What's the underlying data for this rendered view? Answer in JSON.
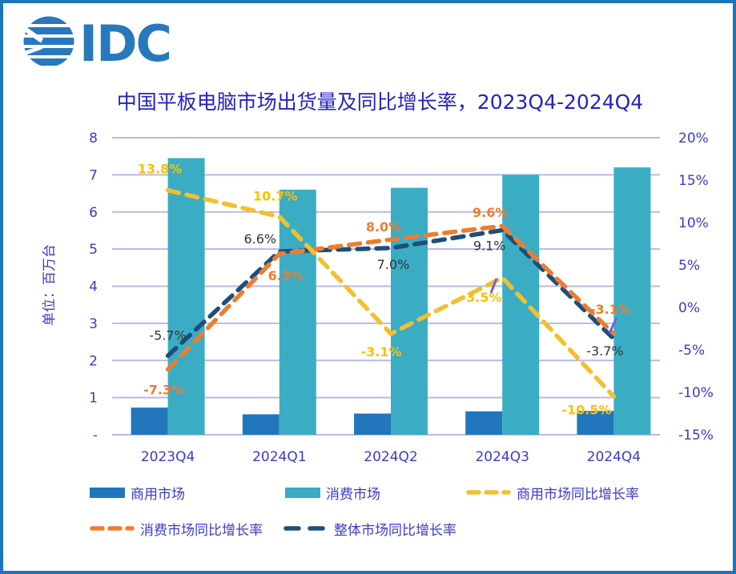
{
  "logo": {
    "text": "IDC"
  },
  "title": "中国平板电脑市场出货量及同比增长率，2023Q4-2024Q4",
  "colors": {
    "frame": "#1B75BB",
    "logo_blue": "#2878BE",
    "title_text": "#2424BE",
    "axis_text": "#3B3BC8",
    "grid": "#B9B9E8",
    "commercial_bar": "#2277BC",
    "consumer_bar": "#3AADC4",
    "commercial_growth_line": "#F2C02E",
    "consumer_growth_line": "#ED7D31",
    "overall_growth_line": "#1F4E79",
    "label_yellow": "#FFC000",
    "label_orange": "#ED7D31",
    "label_black": "#333333",
    "leader_line": "#7060D8"
  },
  "chart_data": {
    "type": "combo-bar-line",
    "title": "中国平板电脑市场出货量及同比增长率，2023Q4-2024Q4",
    "categories": [
      "2023Q4",
      "2024Q1",
      "2024Q2",
      "2024Q3",
      "2024Q4"
    ],
    "left_axis": {
      "title": "单位：百万台",
      "ticks": [
        "8",
        "7",
        "6",
        "5",
        "4",
        "3",
        "2",
        "1",
        "-"
      ],
      "range": [
        0,
        8
      ],
      "grid": true
    },
    "right_axis": {
      "ticks": [
        "20%",
        "15%",
        "10%",
        "5%",
        "0%",
        "-5%",
        "-10%",
        "-15%"
      ],
      "range": [
        -15,
        20
      ]
    },
    "bar_series": [
      {
        "name": "商用市场",
        "axis": "left",
        "color": "#2277BC",
        "values": [
          0.73,
          0.55,
          0.57,
          0.63,
          0.64
        ]
      },
      {
        "name": "消费市场",
        "axis": "left",
        "color": "#3AADC4",
        "values": [
          7.45,
          6.6,
          6.65,
          7.0,
          7.2
        ]
      }
    ],
    "line_series": [
      {
        "name": "整体市场同比增长率",
        "axis": "right",
        "color": "#1F4E79",
        "label_color": "#333333",
        "values": [
          -5.7,
          6.6,
          7.0,
          9.1,
          -3.7
        ]
      },
      {
        "name": "消费市场同比增长率",
        "axis": "right",
        "color": "#ED7D31",
        "label_color": "#ED7D31",
        "values": [
          -7.3,
          6.3,
          8.0,
          9.6,
          -3.1
        ]
      },
      {
        "name": "商用市场同比增长率",
        "axis": "right",
        "color": "#F2C02E",
        "label_color": "#FFC000",
        "values": [
          13.8,
          10.7,
          -3.1,
          3.5,
          -10.5
        ]
      }
    ],
    "legend_position": "bottom"
  },
  "legend": {
    "items": [
      {
        "label": "商用市场",
        "type": "bar",
        "color": "#2277BC"
      },
      {
        "label": "消费市场",
        "type": "bar",
        "color": "#3AADC4"
      },
      {
        "label": "商用市场同比增长率",
        "type": "line",
        "color": "#F2C02E"
      },
      {
        "label": "消费市场同比增长率",
        "type": "line",
        "color": "#ED7D31"
      },
      {
        "label": "整体市场同比增长率",
        "type": "line",
        "color": "#1F4E79"
      }
    ]
  }
}
